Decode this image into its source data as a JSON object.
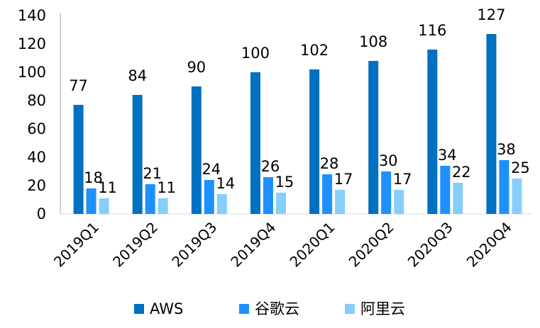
{
  "chart_data": {
    "type": "bar",
    "categories": [
      "2019Q1",
      "2019Q2",
      "2019Q3",
      "2019Q4",
      "2020Q1",
      "2020Q2",
      "2020Q3",
      "2020Q4"
    ],
    "series": [
      {
        "name": "AWS",
        "color": "#0070C0",
        "values": [
          77,
          84,
          90,
          100,
          102,
          108,
          116,
          127
        ]
      },
      {
        "name": "谷歌云",
        "color": "#1E90FF",
        "values": [
          18,
          21,
          24,
          26,
          28,
          30,
          34,
          38
        ]
      },
      {
        "name": "阿里云",
        "color": "#87CEFA",
        "values": [
          11,
          11,
          14,
          15,
          17,
          17,
          22,
          25
        ]
      }
    ],
    "ylim": [
      0,
      140
    ],
    "yticks": [
      0,
      20,
      40,
      60,
      80,
      100,
      120,
      140
    ],
    "grid": false,
    "legend_position": "bottom",
    "data_labels": true
  }
}
